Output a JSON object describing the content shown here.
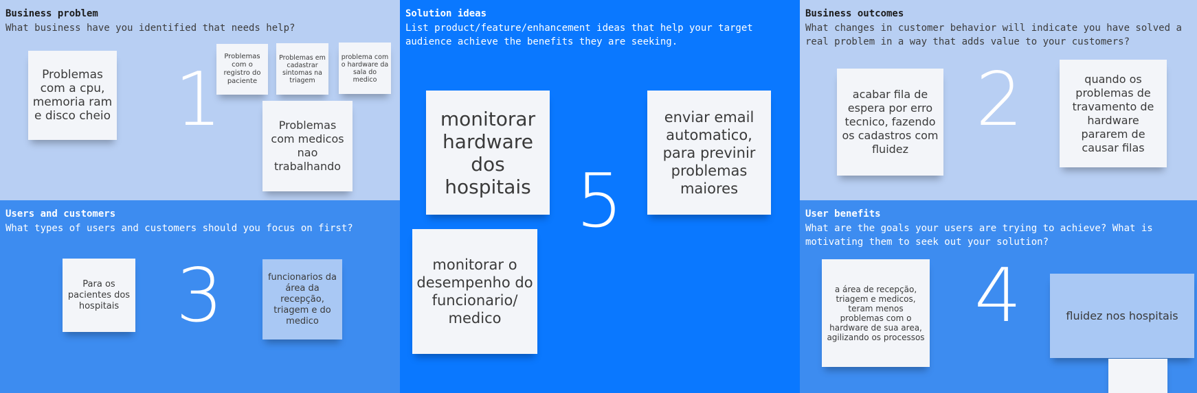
{
  "panels": {
    "business_problem": {
      "title": "Business problem",
      "description": "What business have you identified that needs help?",
      "number": "1",
      "notes": [
        "Problemas com a cpu, memoria ram e disco cheio",
        "Problemas com o registro do paciente",
        "Problemas em cadastrar sintomas na triagem",
        "problema com o hardware da sala do medico",
        "Problemas com medicos nao trabalhando"
      ]
    },
    "users_customers": {
      "title": "Users and customers",
      "description": "What types of users and customers should you focus on first?",
      "number": "3",
      "notes": [
        "Para os pacientes dos hospitais",
        "funcionarios da área da recepção, triagem e do medico"
      ]
    },
    "solution_ideas": {
      "title": "Solution ideas",
      "description": "List product/feature/enhancement ideas that help your target audience achieve the benefits they are seeking.",
      "number": "5",
      "notes": [
        "monitorar hardware dos hospitais",
        "enviar email automatico, para previnir problemas maiores",
        "monitorar o desempenho do funcionario/ medico"
      ]
    },
    "business_outcomes": {
      "title": "Business outcomes",
      "description": "What changes in customer behavior will indicate you have solved a real problem in a way that adds value to your customers?",
      "number": "2",
      "notes": [
        "acabar fila de espera por erro tecnico, fazendo os cadastros com fluidez",
        "quando os problemas de travamento de hardware pararem de causar filas"
      ]
    },
    "user_benefits": {
      "title": "User benefits",
      "description": "What are the goals your users are trying to achieve? What is motivating them to seek out your solution?",
      "number": "4",
      "notes": [
        "a área de recepção, triagem  e medicos, teram menos problemas com o hardware de sua area, agilizando os processos",
        "fluidez nos hospitais",
        ""
      ]
    }
  },
  "colors": {
    "light_panel": "#b8cff3",
    "mid_panel": "#3d8cf0",
    "bright_panel": "#0a78ff",
    "white_note": "#f3f5f9",
    "blue_note": "#a9c8f4"
  }
}
